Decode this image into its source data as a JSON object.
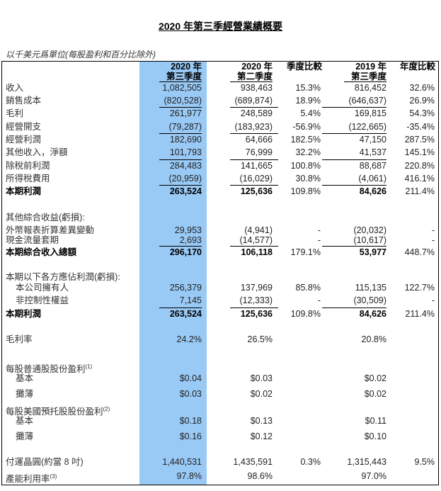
{
  "title": "2020 年第三季經營業績概要",
  "unit_note": "以千美元爲單位(每股盈利和百分比除外)",
  "highlight_color": "#99c9f5",
  "columns": [
    {
      "line1": "2020 年",
      "line2": "第三季度"
    },
    {
      "line1": "2020 年",
      "line2": "第二季度"
    },
    {
      "line1": "季度比較",
      "line2": ""
    },
    {
      "line1": "2019 年",
      "line2": "第三季度"
    },
    {
      "line1": "年度比較",
      "line2": ""
    }
  ],
  "rows": [
    {
      "label": "收入",
      "values": [
        "1,082,505",
        "938,463",
        "15.3%",
        "816,452",
        "32.6%"
      ]
    },
    {
      "label": "銷售成本",
      "values": [
        "(820,528)",
        "(689,874)",
        "18.9%",
        "(646,637)",
        "26.9%"
      ]
    },
    {
      "label": "毛利",
      "values": [
        "261,977",
        "248,589",
        "5.4%",
        "169,815",
        "54.3%"
      ]
    },
    {
      "label": "經營開支",
      "values": [
        "(79,287)",
        "(183,923)",
        "-56.9%",
        "(122,665)",
        "-35.4%"
      ]
    },
    {
      "label": "經營利潤",
      "values": [
        "182,690",
        "64,666",
        "182.5%",
        "47,150",
        "287.5%"
      ]
    },
    {
      "label": "其他收入，淨額",
      "values": [
        "101,793",
        "76,999",
        "32.2%",
        "41,537",
        "145.1%"
      ]
    },
    {
      "label": "除稅前利潤",
      "values": [
        "284,483",
        "141,665",
        "100.8%",
        "88,687",
        "220.8%"
      ]
    },
    {
      "label": "所得稅費用",
      "values": [
        "(20,959)",
        "(16,029)",
        "30.8%",
        "(4,061)",
        "416.1%"
      ]
    },
    {
      "label": "本期利潤",
      "values": [
        "263,524",
        "125,636",
        "109.8%",
        "84,626",
        "211.4%"
      ]
    },
    {
      "label": "其他綜合收益(虧損):",
      "values": [
        "",
        "",
        "",
        "",
        ""
      ]
    },
    {
      "label": "外幣報表折算差異變動",
      "values": [
        "29,953",
        "(4,941)",
        "-",
        "(20,032)",
        "-"
      ]
    },
    {
      "label": "現金流量套期",
      "values": [
        "2,693",
        "(14,577)",
        "-",
        "(10,617)",
        "-"
      ]
    },
    {
      "label": "本期綜合收入總額",
      "values": [
        "296,170",
        "106,118",
        "179.1%",
        "53,977",
        "448.7%"
      ]
    },
    {
      "label": "本期以下各方應佔利潤(虧損):",
      "values": [
        "",
        "",
        "",
        "",
        ""
      ]
    },
    {
      "label": "本公司擁有人",
      "values": [
        "256,379",
        "137,969",
        "85.8%",
        "115,135",
        "122.7%"
      ]
    },
    {
      "label": "非控制性權益",
      "values": [
        "7,145",
        "(12,333)",
        "-",
        "(30,509)",
        "-"
      ]
    },
    {
      "label": "本期利潤",
      "values": [
        "263,524",
        "125,636",
        "109.8%",
        "84,626",
        "211.4%"
      ]
    },
    {
      "label": "毛利率",
      "values": [
        "24.2%",
        "26.5%",
        "",
        "20.8%",
        ""
      ]
    },
    {
      "label": "每股普通股股份盈利",
      "sup": "(1)",
      "values": [
        "",
        "",
        "",
        "",
        ""
      ]
    },
    {
      "label": "基本",
      "values": [
        "$0.04",
        "$0.03",
        "",
        "$0.02",
        ""
      ]
    },
    {
      "label": "攤薄",
      "values": [
        "$0.03",
        "$0.02",
        "",
        "$0.02",
        ""
      ]
    },
    {
      "label": "每股美國預托股股份盈利",
      "sup": "(2)",
      "values": [
        "",
        "",
        "",
        "",
        ""
      ]
    },
    {
      "label": "基本",
      "values": [
        "$0.18",
        "$0.13",
        "",
        "$0.11",
        ""
      ]
    },
    {
      "label": "攤薄",
      "values": [
        "$0.16",
        "$0.12",
        "",
        "$0.10",
        ""
      ]
    },
    {
      "label": "付運晶圓(約當 8 吋)",
      "values": [
        "1,440,531",
        "1,435,591",
        "0.3%",
        "1,315,443",
        "9.5%"
      ]
    },
    {
      "label": "產能利用率",
      "sup": "(3)",
      "values": [
        "97.8%",
        "98.6%",
        "",
        "97.0%",
        ""
      ]
    }
  ]
}
